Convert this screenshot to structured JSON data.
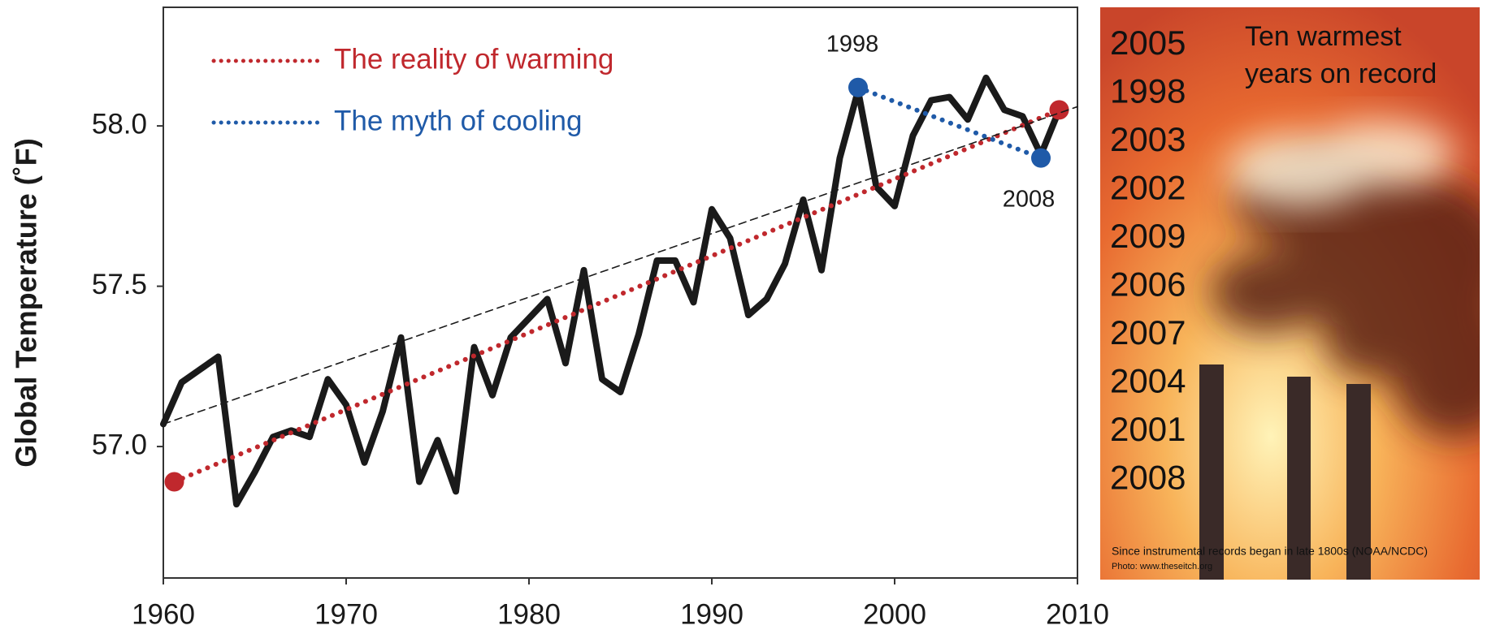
{
  "chart_data": {
    "type": "line",
    "y_label": "Global Temperature (˚F)",
    "xlim": [
      1960,
      2010
    ],
    "xticks": [
      1960,
      1970,
      1980,
      1990,
      2000,
      2010
    ],
    "ylim": [
      56.59,
      58.37
    ],
    "yticks": [
      {
        "value": 57,
        "label": "57.0"
      },
      57.5,
      {
        "value": 58,
        "label": "58.0"
      }
    ],
    "series": [
      {
        "color": "#1a1a1a",
        "style": "solid",
        "markers": false,
        "x": [
          1960,
          1961,
          1962,
          1963,
          1964,
          1965,
          1966,
          1967,
          1968,
          1969,
          1970,
          1971,
          1972,
          1973,
          1974,
          1975,
          1976,
          1977,
          1978,
          1979,
          1980,
          1981,
          1982,
          1983,
          1984,
          1985,
          1986,
          1987,
          1988,
          1989,
          1990,
          1991,
          1992,
          1993,
          1994,
          1995,
          1996,
          1997,
          1998,
          1999,
          2000,
          2001,
          2002,
          2003,
          2004,
          2005,
          2006,
          2007,
          2008,
          2009
        ],
        "values": [
          57.07,
          57.2,
          57.24,
          57.28,
          56.82,
          56.92,
          57.03,
          57.05,
          57.03,
          57.21,
          57.13,
          56.95,
          57.11,
          57.34,
          56.89,
          57.02,
          56.86,
          57.31,
          57.16,
          57.34,
          57.4,
          57.46,
          57.26,
          57.55,
          57.21,
          57.17,
          57.35,
          57.58,
          57.58,
          57.45,
          57.74,
          57.65,
          57.41,
          57.46,
          57.57,
          57.77,
          57.55,
          57.9,
          58.11,
          57.81,
          57.75,
          57.97,
          58.08,
          58.09,
          58.02,
          58.15,
          58.05,
          58.03,
          57.91,
          58.05
        ]
      },
      {
        "name": "The reality of warming",
        "color": "#c0282d",
        "style": "dotted",
        "markers": true,
        "x": [
          1960.6,
          2009
        ],
        "values": [
          56.89,
          58.05
        ]
      },
      {
        "name": "The myth of cooling",
        "color": "#1f5aa8",
        "style": "dotted",
        "markers": true,
        "point_labels": true,
        "x": [
          1998,
          2008
        ],
        "values": [
          58.12,
          57.9
        ]
      },
      {
        "color": "#1a1a1a",
        "style": "dashed",
        "markers": false,
        "x": [
          1960,
          2010
        ],
        "values": [
          57.07,
          58.06
        ]
      }
    ]
  },
  "panel": {
    "title_lines": [
      "Ten warmest",
      "years on record"
    ],
    "years": [
      2005,
      1998,
      2003,
      2002,
      2009,
      2006,
      2007,
      2004,
      2001,
      2008
    ],
    "caption": "Since instrumental records began in late 1800s (NOAA/NCDC)",
    "credit": "Photo: www.theseitch.org"
  }
}
